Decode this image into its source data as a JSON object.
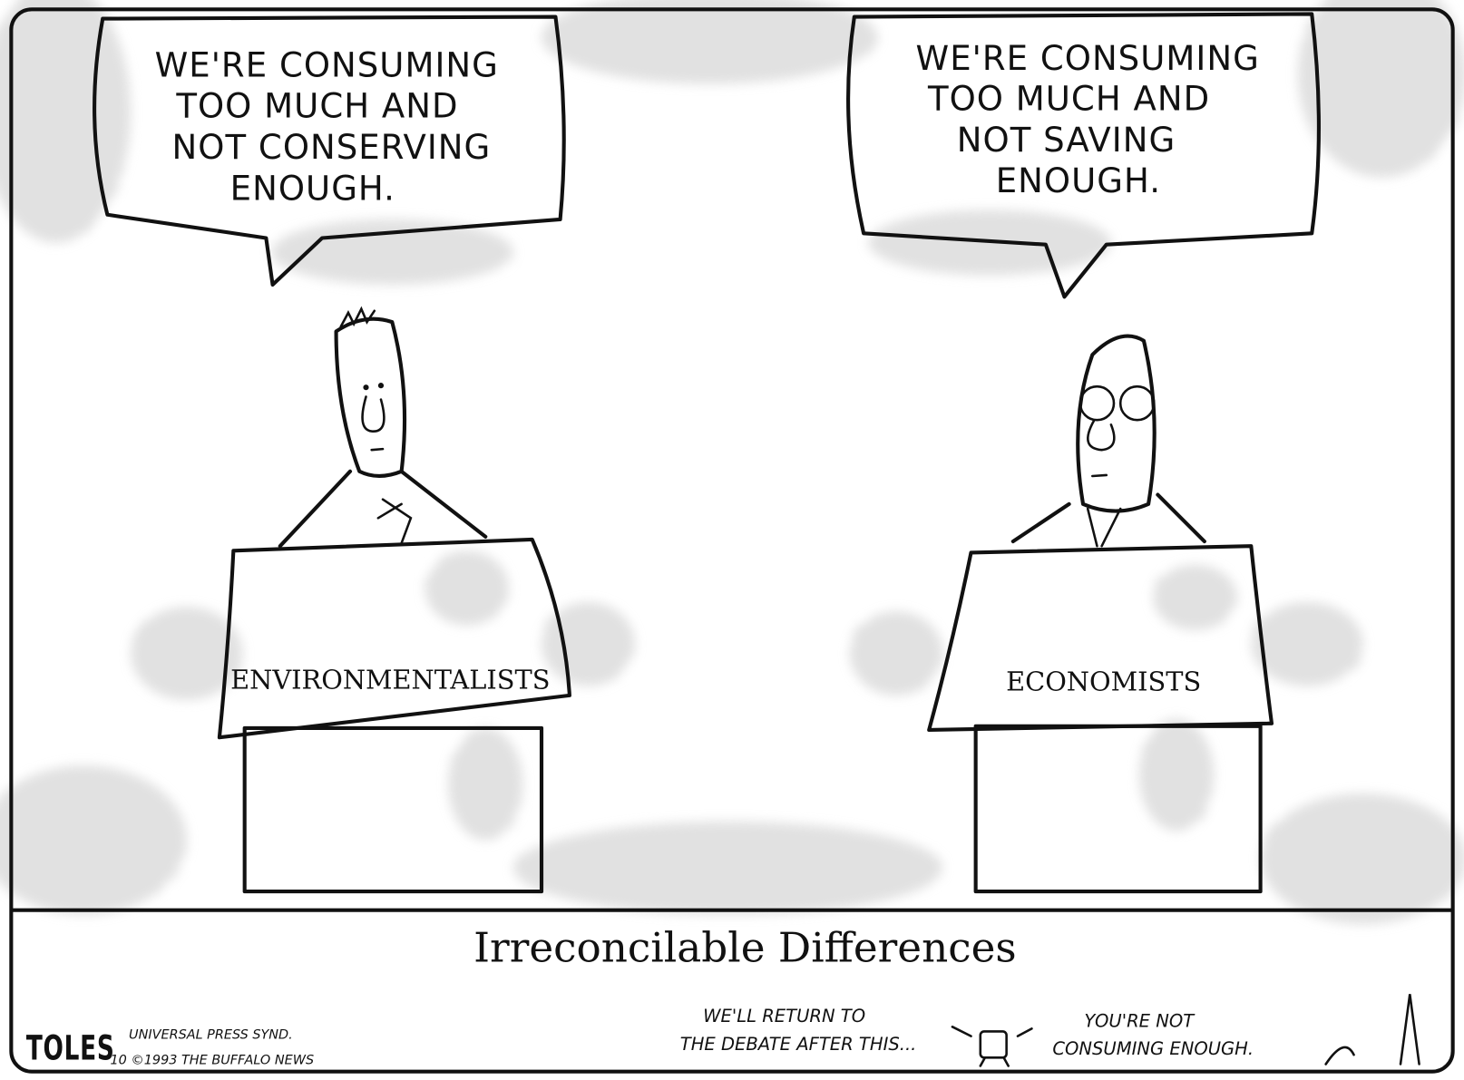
{
  "left_bubble": {
    "lines": [
      "WE'RE CONSUMING",
      "TOO MUCH AND",
      "NOT CONSERVING",
      "ENOUGH."
    ]
  },
  "right_bubble": {
    "lines": [
      "WE'RE CONSUMING",
      "TOO MUCH AND",
      "NOT SAVING",
      "ENOUGH."
    ]
  },
  "left_podium": {
    "label": "ENVIRONMENTALISTS"
  },
  "right_podium": {
    "label": "ECONOMISTS"
  },
  "caption": "Irreconcilable Differences",
  "signature": "TOLES",
  "credit": {
    "lines": [
      "UNIVERSAL PRESS SYND.",
      "10 ©1993 THE BUFFALO NEWS"
    ]
  },
  "tv_caption": {
    "left_lines": [
      "WE'LL RETURN TO",
      "THE DEBATE AFTER THIS..."
    ],
    "right_lines": [
      "YOU'RE NOT",
      "CONSUMING ENOUGH."
    ]
  }
}
